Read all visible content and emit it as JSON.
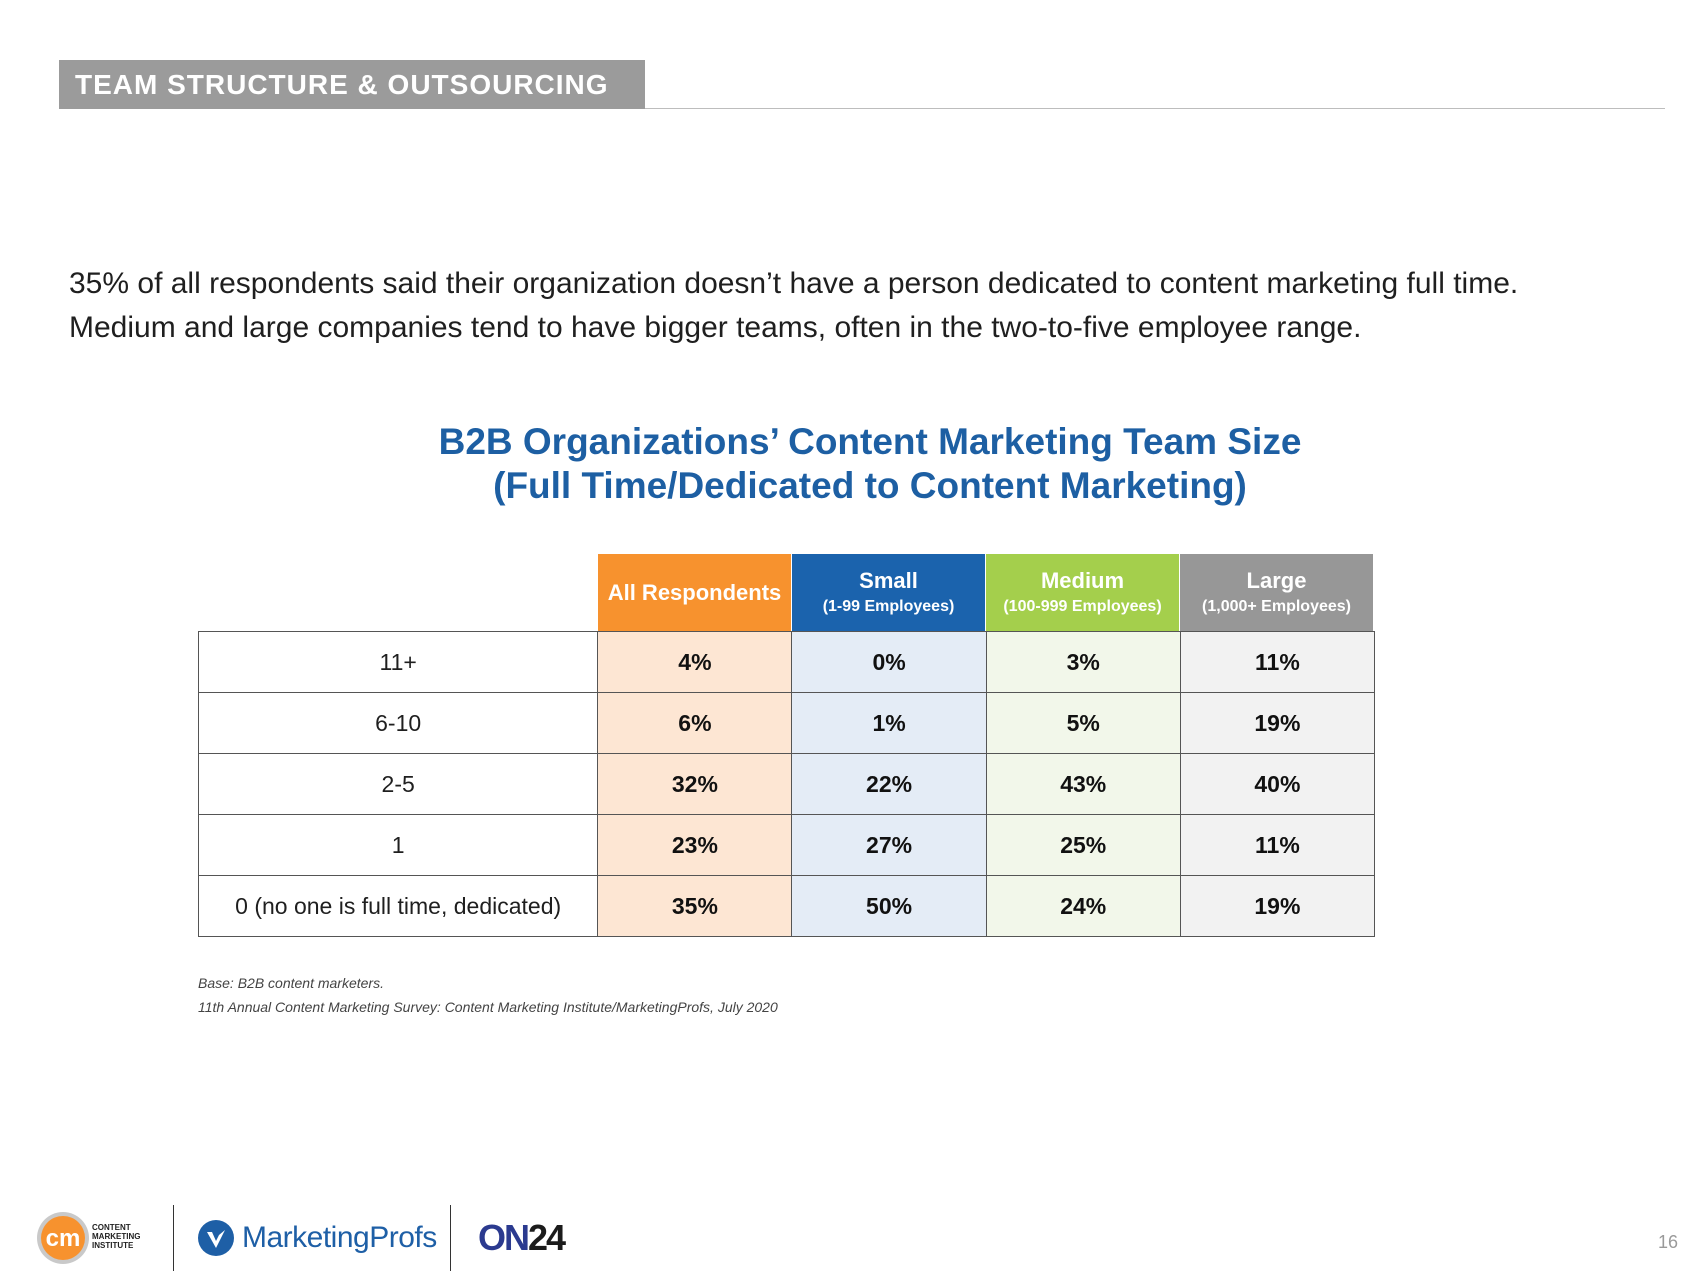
{
  "section_tag": "TEAM STRUCTURE & OUTSOURCING",
  "intro": {
    "line1": "35% of all respondents said their organization doesn’t have a person dedicated to content marketing full time.",
    "line2": "Medium and large companies tend to have bigger teams, often in the two-to-five employee range."
  },
  "chart_data": {
    "type": "table",
    "title": "B2B Organizations’ Content Marketing Team Size",
    "subtitle": "(Full Time/Dedicated to Content Marketing)",
    "columns": [
      {
        "name": "All Respondents",
        "sub": ""
      },
      {
        "name": "Small",
        "sub": "(1-99 Employees)"
      },
      {
        "name": "Medium",
        "sub": "(100-999 Employees)"
      },
      {
        "name": "Large",
        "sub": "(1,000+ Employees)"
      }
    ],
    "rows": [
      {
        "label": "11+",
        "values": [
          "4%",
          "0%",
          "3%",
          "11%"
        ]
      },
      {
        "label": "6-10",
        "values": [
          "6%",
          "1%",
          "5%",
          "19%"
        ]
      },
      {
        "label": "2-5",
        "values": [
          "32%",
          "22%",
          "43%",
          "40%"
        ]
      },
      {
        "label": "1",
        "values": [
          "23%",
          "27%",
          "25%",
          "11%"
        ]
      },
      {
        "label": "0 (no one is full time, dedicated)",
        "values": [
          "35%",
          "50%",
          "24%",
          "19%"
        ]
      }
    ],
    "colors": {
      "all": "#f7922e",
      "small": "#1b63ad",
      "medium": "#a4cf4c",
      "large": "#979797"
    }
  },
  "footnotes": {
    "base": "Base: B2B content marketers.",
    "source": "11th Annual Content Marketing Survey: Content Marketing Institute/MarketingProfs, July 2020"
  },
  "logos": {
    "cmi_mark": "cm",
    "cmi_name_1": "CONTENT",
    "cmi_name_2": "MARKETING",
    "cmi_name_3": "INSTITUTE",
    "marketingprofs": "MarketingProfs",
    "on24_on": "ON",
    "on24_num": "24"
  },
  "page_number": "16"
}
